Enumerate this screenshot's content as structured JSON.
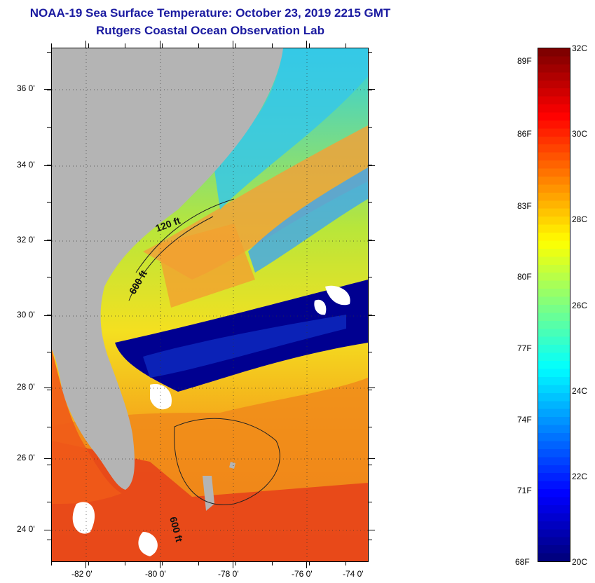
{
  "title": "NOAA-19 Sea Surface Temperature:  October 23, 2019 2215 GMT",
  "subtitle": "Rutgers Coastal Ocean Observation Lab",
  "map": {
    "lon_labels": [
      "-82 0'",
      "-80 0'",
      "-78 0'",
      "-76 0'",
      "-74 0'"
    ],
    "lat_labels": [
      "36 0'",
      "34 0'",
      "32 0'",
      "30 0'",
      "28 0'",
      "26 0'",
      "24 0'"
    ],
    "contour_labels": [
      "120 ft",
      "600 ft",
      "600 ft"
    ],
    "colors": {
      "land": "#b4b4b4",
      "cloud": "#ffffff",
      "cold": "#000090"
    }
  },
  "colorbar": {
    "fahrenheit_labels": [
      "89F",
      "86F",
      "83F",
      "80F",
      "77F",
      "74F",
      "71F",
      "68F"
    ],
    "celsius_labels": [
      "32C",
      "30C",
      "28C",
      "26C",
      "24C",
      "22C",
      "20C"
    ],
    "range_c": [
      20,
      32
    ],
    "colormap": "jet"
  }
}
